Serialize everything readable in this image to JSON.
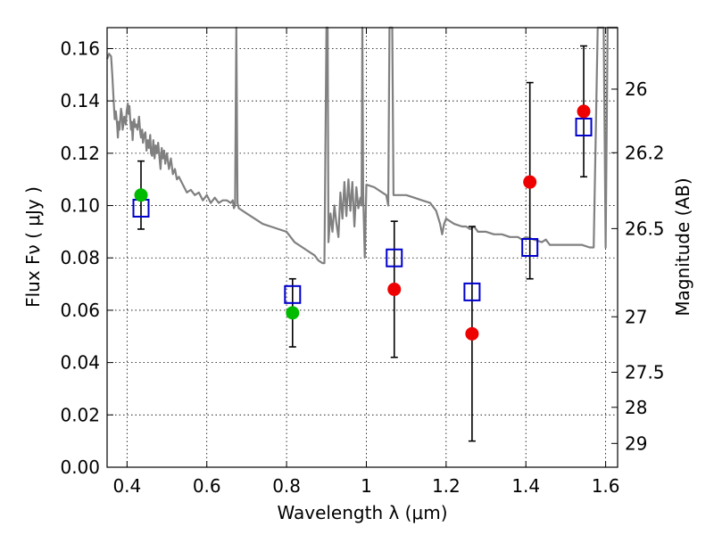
{
  "chart_data": {
    "type": "scatter",
    "title": "",
    "xlabel": "Wavelength  λ (μm)",
    "ylabel": "Flux  Fν  ( μJy )",
    "y2label": "Magnitude (AB)",
    "xlim": [
      0.35,
      1.63
    ],
    "ylim": [
      0.0,
      0.168
    ],
    "x_ticks": [
      0.4,
      0.6,
      0.8,
      1.0,
      1.2,
      1.4,
      1.6
    ],
    "x_tick_labels": [
      "0.4",
      "0.6",
      "0.8",
      "1",
      "1.2",
      "1.4",
      "1.6"
    ],
    "y_ticks": [
      0.0,
      0.02,
      0.04,
      0.06,
      0.08,
      0.1,
      0.12,
      0.14,
      0.16
    ],
    "y_tick_labels": [
      "0.00",
      "0.02",
      "0.04",
      "0.06",
      "0.08",
      "0.10",
      "0.12",
      "0.14",
      "0.16"
    ],
    "y2_ticks": [
      {
        "label": "26",
        "flux": 0.1445
      },
      {
        "label": "26.2",
        "flux": 0.1202
      },
      {
        "label": "26.5",
        "flux": 0.0912
      },
      {
        "label": "27",
        "flux": 0.0575
      },
      {
        "label": "27.5",
        "flux": 0.0363
      },
      {
        "label": "28",
        "flux": 0.0229
      },
      {
        "label": "29",
        "flux": 0.0091
      }
    ],
    "grid": true,
    "colors": {
      "sed": "#808080",
      "model": "#0000cc",
      "green": "#00bb00",
      "red": "#ee0000",
      "errorbar": "#000000"
    },
    "series": [
      {
        "marker": "line",
        "points": [
          [
            0.35,
            0.156
          ],
          [
            0.355,
            0.158
          ],
          [
            0.36,
            0.157
          ],
          [
            0.363,
            0.15
          ],
          [
            0.366,
            0.141
          ],
          [
            0.369,
            0.133
          ],
          [
            0.372,
            0.136
          ],
          [
            0.375,
            0.131
          ],
          [
            0.377,
            0.126
          ],
          [
            0.379,
            0.132
          ],
          [
            0.381,
            0.129
          ],
          [
            0.383,
            0.133
          ],
          [
            0.385,
            0.137
          ],
          [
            0.387,
            0.135
          ],
          [
            0.389,
            0.129
          ],
          [
            0.391,
            0.131
          ],
          [
            0.393,
            0.134
          ],
          [
            0.395,
            0.133
          ],
          [
            0.397,
            0.131
          ],
          [
            0.399,
            0.136
          ],
          [
            0.402,
            0.139
          ],
          [
            0.404,
            0.135
          ],
          [
            0.406,
            0.138
          ],
          [
            0.408,
            0.133
          ],
          [
            0.41,
            0.129
          ],
          [
            0.412,
            0.132
          ],
          [
            0.414,
            0.125
          ],
          [
            0.416,
            0.131
          ],
          [
            0.418,
            0.133
          ],
          [
            0.42,
            0.13
          ],
          [
            0.423,
            0.131
          ],
          [
            0.426,
            0.129
          ],
          [
            0.43,
            0.134
          ],
          [
            0.433,
            0.128
          ],
          [
            0.435,
            0.126
          ],
          [
            0.438,
            0.129
          ],
          [
            0.44,
            0.124
          ],
          [
            0.443,
            0.127
          ],
          [
            0.446,
            0.128
          ],
          [
            0.449,
            0.121
          ],
          [
            0.452,
            0.125
          ],
          [
            0.455,
            0.122
          ],
          [
            0.458,
            0.127
          ],
          [
            0.46,
            0.12
          ],
          [
            0.463,
            0.119
          ],
          [
            0.466,
            0.125
          ],
          [
            0.469,
            0.118
          ],
          [
            0.472,
            0.123
          ],
          [
            0.475,
            0.12
          ],
          [
            0.478,
            0.124
          ],
          [
            0.481,
            0.119
          ],
          [
            0.484,
            0.114
          ],
          [
            0.487,
            0.122
          ],
          [
            0.49,
            0.118
          ],
          [
            0.493,
            0.121
          ],
          [
            0.496,
            0.116
          ],
          [
            0.5,
            0.12
          ],
          [
            0.505,
            0.114
          ],
          [
            0.51,
            0.118
          ],
          [
            0.515,
            0.112
          ],
          [
            0.52,
            0.114
          ],
          [
            0.525,
            0.11
          ],
          [
            0.53,
            0.111
          ],
          [
            0.54,
            0.108
          ],
          [
            0.55,
            0.105
          ],
          [
            0.56,
            0.106
          ],
          [
            0.57,
            0.104
          ],
          [
            0.58,
            0.105
          ],
          [
            0.59,
            0.102
          ],
          [
            0.6,
            0.104
          ],
          [
            0.61,
            0.101
          ],
          [
            0.62,
            0.103
          ],
          [
            0.63,
            0.101
          ],
          [
            0.64,
            0.102
          ],
          [
            0.65,
            0.102
          ],
          [
            0.66,
            0.101
          ],
          [
            0.665,
            0.102
          ],
          [
            0.668,
            0.099
          ],
          [
            0.671,
            0.1
          ],
          [
            0.674,
            0.168
          ],
          [
            0.677,
            0.101
          ],
          [
            0.68,
            0.099
          ],
          [
            0.7,
            0.097
          ],
          [
            0.72,
            0.095
          ],
          [
            0.74,
            0.093
          ],
          [
            0.76,
            0.092
          ],
          [
            0.78,
            0.091
          ],
          [
            0.8,
            0.09
          ],
          [
            0.82,
            0.086
          ],
          [
            0.84,
            0.084
          ],
          [
            0.86,
            0.082
          ],
          [
            0.87,
            0.081
          ],
          [
            0.88,
            0.079
          ],
          [
            0.89,
            0.078
          ],
          [
            0.895,
            0.078
          ],
          [
            0.9,
            0.168
          ],
          [
            0.903,
            0.168
          ],
          [
            0.905,
            0.086
          ],
          [
            0.91,
            0.097
          ],
          [
            0.915,
            0.09
          ],
          [
            0.92,
            0.1
          ],
          [
            0.925,
            0.093
          ],
          [
            0.93,
            0.088
          ],
          [
            0.935,
            0.105
          ],
          [
            0.94,
            0.095
          ],
          [
            0.945,
            0.109
          ],
          [
            0.95,
            0.096
          ],
          [
            0.955,
            0.11
          ],
          [
            0.96,
            0.098
          ],
          [
            0.965,
            0.109
          ],
          [
            0.97,
            0.092
          ],
          [
            0.975,
            0.107
          ],
          [
            0.98,
            0.099
          ],
          [
            0.985,
            0.103
          ],
          [
            0.988,
            0.1
          ],
          [
            0.99,
            0.168
          ],
          [
            0.992,
            0.105
          ],
          [
            0.996,
            0.08
          ],
          [
            1.0,
            0.108
          ],
          [
            1.02,
            0.107
          ],
          [
            1.04,
            0.105
          ],
          [
            1.05,
            0.104
          ],
          [
            1.055,
            0.1
          ],
          [
            1.058,
            0.168
          ],
          [
            1.065,
            0.168
          ],
          [
            1.068,
            0.104
          ],
          [
            1.08,
            0.104
          ],
          [
            1.1,
            0.104
          ],
          [
            1.12,
            0.103
          ],
          [
            1.14,
            0.102
          ],
          [
            1.16,
            0.101
          ],
          [
            1.175,
            0.098
          ],
          [
            1.185,
            0.093
          ],
          [
            1.19,
            0.089
          ],
          [
            1.195,
            0.093
          ],
          [
            1.2,
            0.095
          ],
          [
            1.22,
            0.093
          ],
          [
            1.24,
            0.092
          ],
          [
            1.25,
            0.092
          ],
          [
            1.26,
            0.091
          ],
          [
            1.27,
            0.092
          ],
          [
            1.28,
            0.09
          ],
          [
            1.3,
            0.09
          ],
          [
            1.32,
            0.089
          ],
          [
            1.34,
            0.089
          ],
          [
            1.36,
            0.088
          ],
          [
            1.38,
            0.088
          ],
          [
            1.39,
            0.087
          ],
          [
            1.4,
            0.088
          ],
          [
            1.42,
            0.087
          ],
          [
            1.44,
            0.086
          ],
          [
            1.45,
            0.087
          ],
          [
            1.46,
            0.085
          ],
          [
            1.5,
            0.085
          ],
          [
            1.54,
            0.085
          ],
          [
            1.56,
            0.084
          ],
          [
            1.57,
            0.084
          ],
          [
            1.58,
            0.168
          ],
          [
            1.595,
            0.168
          ],
          [
            1.6,
            0.084
          ],
          [
            1.605,
            0.168
          ],
          [
            1.63,
            0.168
          ]
        ]
      },
      {
        "marker": "open-square",
        "points": [
          [
            0.435,
            0.099
          ],
          [
            0.815,
            0.066
          ],
          [
            1.07,
            0.08
          ],
          [
            1.265,
            0.067
          ],
          [
            1.41,
            0.084
          ],
          [
            1.545,
            0.13
          ]
        ]
      },
      {
        "marker": "filled-circle-green",
        "points": [
          [
            0.435,
            0.104
          ],
          [
            0.815,
            0.059
          ]
        ]
      },
      {
        "marker": "filled-circle-red",
        "points": [
          [
            1.07,
            0.068
          ],
          [
            1.265,
            0.051
          ],
          [
            1.41,
            0.109
          ],
          [
            1.545,
            0.136
          ]
        ]
      },
      {
        "marker": "errorbar",
        "points": [
          {
            "x": 0.435,
            "low": 0.091,
            "high": 0.117
          },
          {
            "x": 0.815,
            "low": 0.046,
            "high": 0.072
          },
          {
            "x": 1.07,
            "low": 0.042,
            "high": 0.094
          },
          {
            "x": 1.265,
            "low": 0.01,
            "high": 0.092
          },
          {
            "x": 1.41,
            "low": 0.072,
            "high": 0.147
          },
          {
            "x": 1.545,
            "low": 0.111,
            "high": 0.161
          }
        ]
      }
    ]
  }
}
